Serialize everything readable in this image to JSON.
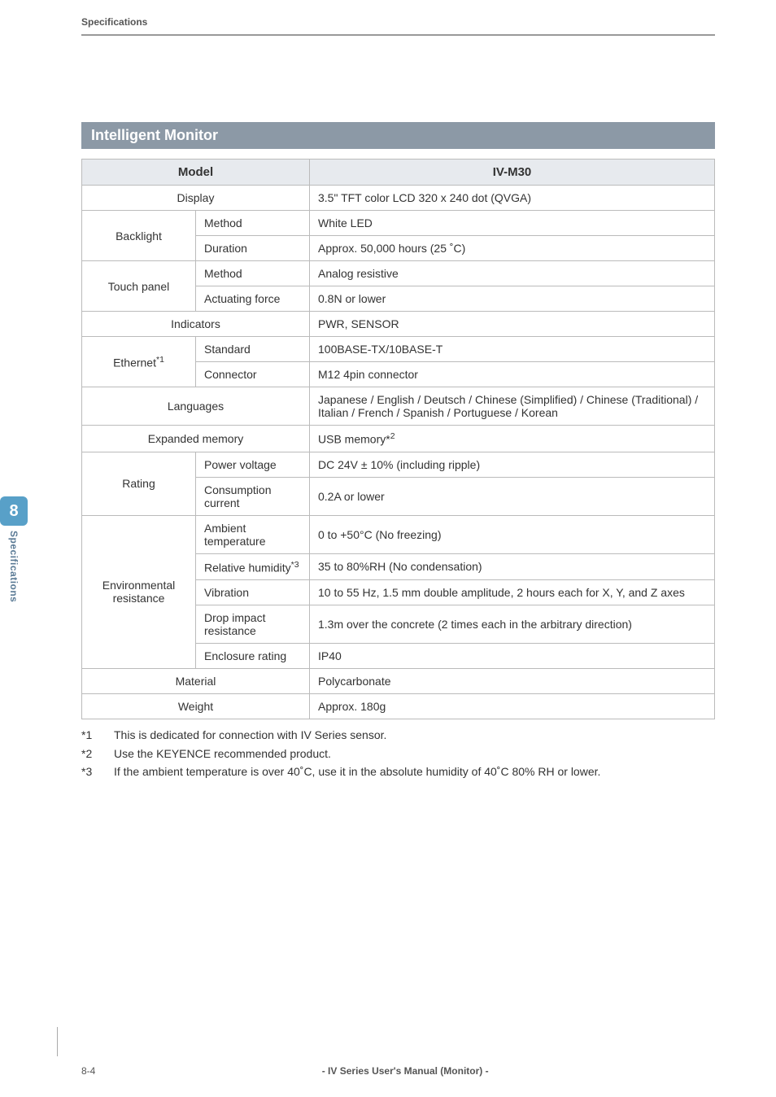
{
  "page": {
    "header_label": "Specifications",
    "section_title": "Intelligent Monitor",
    "chapter_number": "8",
    "chapter_label": "Specifications",
    "page_number": "8-4",
    "book_title": "- IV Series User's Manual (Monitor) -"
  },
  "table": {
    "header": {
      "model_label": "Model",
      "model_value": "IV-M30"
    },
    "rows": {
      "display_label": "Display",
      "display_value": "3.5\" TFT color LCD  320 x 240 dot (QVGA)",
      "backlight_label": "Backlight",
      "backlight_method_label": "Method",
      "backlight_method_value": "White LED",
      "backlight_duration_label": "Duration",
      "backlight_duration_value": "Approx. 50,000 hours (25 ˚C)",
      "touchpanel_label": "Touch panel",
      "touchpanel_method_label": "Method",
      "touchpanel_method_value": "Analog resistive",
      "touchpanel_force_label": "Actuating force",
      "touchpanel_force_value": "0.8N or lower",
      "indicators_label": "Indicators",
      "indicators_value": "PWR, SENSOR",
      "ethernet_label": "Ethernet",
      "ethernet_sup": "*1",
      "ethernet_standard_label": "Standard",
      "ethernet_standard_value": "100BASE-TX/10BASE-T",
      "ethernet_connector_label": "Connector",
      "ethernet_connector_value": "M12 4pin connector",
      "languages_label": "Languages",
      "languages_value": "Japanese / English / Deutsch / Chinese (Simplified) / Chinese (Traditional) / Italian / French / Spanish / Portuguese / Korean",
      "expmem_label": "Expanded memory",
      "expmem_value": "USB memory*",
      "expmem_sup": "2",
      "rating_label": "Rating",
      "rating_voltage_label": "Power voltage",
      "rating_voltage_value": "DC 24V ± 10% (including ripple)",
      "rating_current_label": "Consumption current",
      "rating_current_value": "0.2A or lower",
      "env_label": "Environmental resistance",
      "env_temp_label": "Ambient temperature",
      "env_temp_value": "0 to +50°C (No freezing)",
      "env_hum_label": "Relative humidity",
      "env_hum_sup": "*3",
      "env_hum_value": "35 to 80%RH (No condensation)",
      "env_vib_label": "Vibration",
      "env_vib_value": "10 to 55 Hz, 1.5 mm double amplitude, 2 hours each for X, Y, and Z axes",
      "env_drop_label": "Drop impact resistance",
      "env_drop_value": "1.3m over the concrete (2 times each in the arbitrary direction)",
      "env_enc_label": "Enclosure rating",
      "env_enc_value": "IP40",
      "material_label": "Material",
      "material_value": "Polycarbonate",
      "weight_label": "Weight",
      "weight_value": "Approx. 180g"
    }
  },
  "footnotes": {
    "f1_mark": "*1",
    "f1_text": "This is dedicated for connection with IV Series sensor.",
    "f2_mark": "*2",
    "f2_text": "Use the KEYENCE recommended product.",
    "f3_mark": "*3",
    "f3_text": "If the ambient temperature is over 40˚C, use it in the absolute humidity of 40˚C 80% RH or lower."
  },
  "colors": {
    "section_bar_bg": "#8c99a6",
    "section_bar_fg": "#ffffff",
    "table_border": "#bbbbbb",
    "table_header_bg": "#e7eaee",
    "chapter_tab_bg": "#58a0c8",
    "chapter_label_fg": "#5a7a95"
  }
}
